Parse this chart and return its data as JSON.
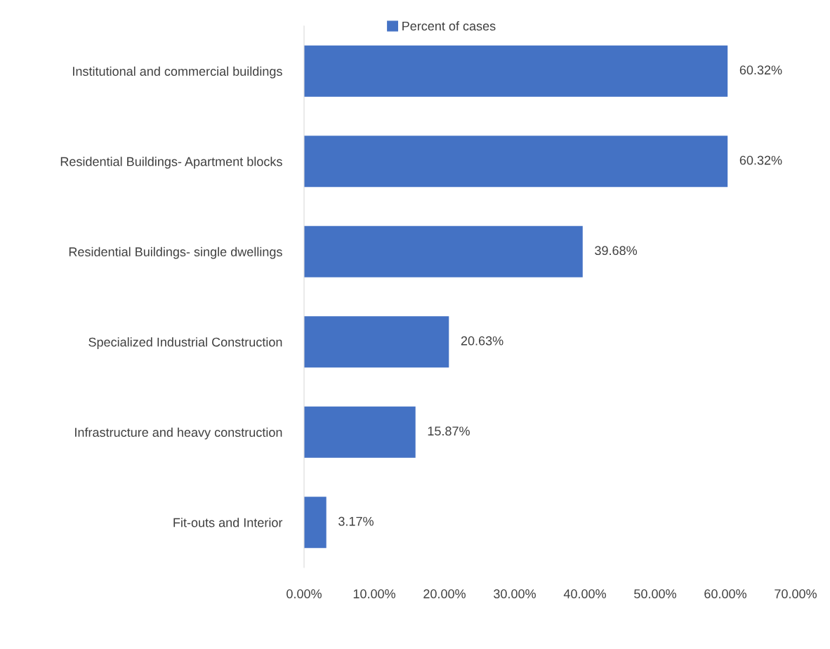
{
  "chart_data": {
    "type": "bar",
    "orientation": "horizontal",
    "categories": [
      "Institutional and commercial buildings",
      "Residential Buildings- Apartment blocks",
      "Residential Buildings- single dwellings",
      "Specialized Industrial Construction",
      "Infrastructure and heavy construction",
      "Fit-outs and Interior"
    ],
    "series": [
      {
        "name": "Percent of cases",
        "color": "#4472c4",
        "values": [
          60.32,
          60.32,
          39.68,
          20.63,
          15.87,
          3.17
        ],
        "value_labels": [
          "60.32%",
          "60.32%",
          "39.68%",
          "20.63%",
          "15.87%",
          "3.17%"
        ]
      }
    ],
    "xlim": [
      0,
      70
    ],
    "xticks": [
      {
        "value": 0,
        "label": "0.00%"
      },
      {
        "value": 10,
        "label": "10.00%"
      },
      {
        "value": 20,
        "label": "20.00%"
      },
      {
        "value": 30,
        "label": "30.00%"
      },
      {
        "value": 40,
        "label": "40.00%"
      },
      {
        "value": 50,
        "label": "50.00%"
      },
      {
        "value": 60,
        "label": "60.00%"
      },
      {
        "value": 70,
        "label": "70.00%"
      }
    ],
    "grid": false,
    "legend": "top"
  }
}
